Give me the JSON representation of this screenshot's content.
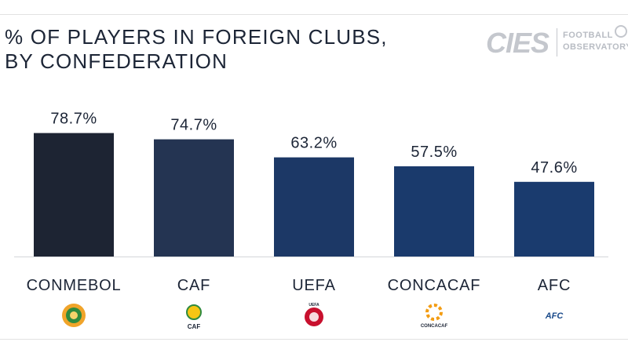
{
  "header": {
    "title_line1": "% OF PLAYERS IN FOREIGN CLUBS,",
    "title_line2": "BY CONFEDERATION"
  },
  "brand": {
    "logo_text": "CIES",
    "sub_line1": "FOOTBALL",
    "sub_line2": "OBSERVATORY"
  },
  "colors": {
    "bar_gradient": [
      "#1d2433",
      "#243452",
      "#1c3866",
      "#1a3a6c",
      "#1a3b6e"
    ],
    "text": "#1c2536"
  },
  "chart_data": {
    "type": "bar",
    "title": "% OF PLAYERS IN FOREIGN CLUBS, BY CONFEDERATION",
    "categories": [
      "CONMEBOL",
      "CAF",
      "UEFA",
      "CONCACAF",
      "AFC"
    ],
    "values": [
      78.7,
      74.7,
      63.2,
      57.5,
      47.6
    ],
    "value_labels": [
      "78.7%",
      "74.7%",
      "63.2%",
      "57.5%",
      "47.6%"
    ],
    "ylim": [
      0,
      100
    ],
    "grid": false,
    "logos": [
      {
        "name": "conmebol-logo",
        "colors": [
          "#f0a42a",
          "#2f8a3e"
        ]
      },
      {
        "name": "caf-logo",
        "text": "CAF",
        "colors": [
          "#f6c614",
          "#2f8a3e"
        ]
      },
      {
        "name": "uefa-logo",
        "text": "UEFA",
        "colors": [
          "#c8102e"
        ]
      },
      {
        "name": "concacaf-logo",
        "text": "CONCACAF",
        "colors": [
          "#f39c12"
        ]
      },
      {
        "name": "afc-logo",
        "text": "AFC",
        "colors": [
          "#1a4a8a"
        ]
      }
    ]
  }
}
